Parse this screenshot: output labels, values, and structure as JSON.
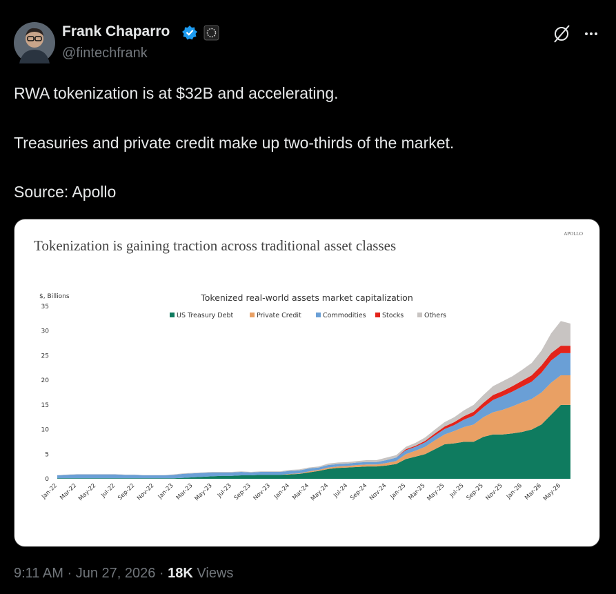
{
  "tweet": {
    "author": {
      "name": "Frank Chaparro",
      "handle": "@fintechfrank"
    },
    "text": [
      "RWA tokenization is at $32B and accelerating.",
      "Treasuries and private credit make up two-thirds of the market.",
      "Source: Apollo"
    ],
    "meta": {
      "time": "9:11 AM",
      "separator": "·",
      "date": "Jun 27, 2026",
      "views": "18K",
      "views_label": "Views"
    }
  },
  "card": {
    "brand": "APOLLO",
    "title": "Tokenization is gaining traction across traditional asset classes"
  },
  "chart_data": {
    "type": "stacked_area",
    "title": "Tokenized real-world assets market capitalization",
    "y_label": "$, Billions",
    "categories": [
      "Jan-22",
      null,
      "Mar-22",
      null,
      "May-22",
      null,
      "Jul-22",
      null,
      "Sep-22",
      null,
      "Nov-22",
      null,
      "Jan-23",
      null,
      "Mar-23",
      null,
      "May-23",
      null,
      "Jul-23",
      null,
      "Sep-23",
      null,
      "Nov-23",
      null,
      "Jan-24",
      null,
      "Mar-24",
      null,
      "May-24",
      null,
      "Jul-24",
      null,
      "Sep-24",
      null,
      "Nov-24",
      null,
      "Jan-25",
      null,
      "Mar-25",
      null,
      "May-25",
      null,
      "Jul-25",
      null,
      "Sep-25",
      null,
      "Nov-25",
      null,
      "Jan-26",
      null,
      "Mar-26",
      null,
      "May-26",
      null
    ],
    "ylim": [
      0,
      35
    ],
    "yticks": [
      0,
      5,
      10,
      15,
      20,
      25,
      30,
      35
    ],
    "grid": false,
    "series": [
      {
        "name": "US Treasury Debt",
        "color": "#0f7b5f",
        "values": [
          0.1,
          0.1,
          0.1,
          0.1,
          0.1,
          0.1,
          0.1,
          0.1,
          0.1,
          0.1,
          0.1,
          0.1,
          0.1,
          0.2,
          0.3,
          0.4,
          0.5,
          0.6,
          0.6,
          0.7,
          0.7,
          0.8,
          0.8,
          0.8,
          0.9,
          1.0,
          1.3,
          1.6,
          2.0,
          2.2,
          2.3,
          2.4,
          2.5,
          2.5,
          2.7,
          3.0,
          4.0,
          4.5,
          5.0,
          6.0,
          7.0,
          7.2,
          7.5,
          7.5,
          8.5,
          9.0,
          9.0,
          9.2,
          9.5,
          10.0,
          11.0,
          13.0,
          15.0,
          15.0
        ]
      },
      {
        "name": "Private Credit",
        "color": "#e9a064",
        "values": [
          0,
          0,
          0,
          0,
          0,
          0,
          0,
          0,
          0,
          0,
          0,
          0,
          0,
          0,
          0,
          0,
          0,
          0,
          0,
          0,
          0,
          0,
          0,
          0,
          0.1,
          0.1,
          0.2,
          0.2,
          0.3,
          0.3,
          0.3,
          0.4,
          0.4,
          0.4,
          0.5,
          0.6,
          1.0,
          1.2,
          1.5,
          1.8,
          2.0,
          2.5,
          3.0,
          3.5,
          4.0,
          4.5,
          5.0,
          5.5,
          6.0,
          6.2,
          6.5,
          6.5,
          6.0,
          6.0
        ]
      },
      {
        "name": "Commodities",
        "color": "#6a9fd6",
        "values": [
          0.6,
          0.7,
          0.8,
          0.8,
          0.8,
          0.8,
          0.8,
          0.7,
          0.7,
          0.6,
          0.6,
          0.6,
          0.7,
          0.8,
          0.8,
          0.8,
          0.8,
          0.7,
          0.7,
          0.7,
          0.6,
          0.6,
          0.6,
          0.6,
          0.6,
          0.6,
          0.6,
          0.5,
          0.5,
          0.5,
          0.5,
          0.5,
          0.5,
          0.5,
          0.6,
          0.7,
          0.8,
          0.8,
          0.9,
          1.0,
          1.1,
          1.2,
          1.5,
          1.8,
          2.0,
          2.5,
          2.8,
          3.0,
          3.2,
          3.5,
          4.0,
          4.5,
          4.5,
          4.5
        ]
      },
      {
        "name": "Stocks",
        "color": "#e3241b",
        "values": [
          0,
          0,
          0,
          0,
          0,
          0,
          0,
          0,
          0,
          0,
          0,
          0,
          0,
          0,
          0,
          0,
          0,
          0,
          0,
          0,
          0,
          0,
          0,
          0,
          0,
          0,
          0,
          0,
          0,
          0,
          0,
          0,
          0,
          0,
          0,
          0,
          0.2,
          0.2,
          0.3,
          0.4,
          0.5,
          0.6,
          0.7,
          0.8,
          0.9,
          1.0,
          1.0,
          1.1,
          1.2,
          1.3,
          1.5,
          1.5,
          1.5,
          1.5
        ]
      },
      {
        "name": "Others",
        "color": "#c8c4c2",
        "values": [
          0.05,
          0.05,
          0.05,
          0.05,
          0.05,
          0.05,
          0.05,
          0.05,
          0.05,
          0.05,
          0.05,
          0.05,
          0.1,
          0.1,
          0.1,
          0.1,
          0.1,
          0.1,
          0.1,
          0.1,
          0.1,
          0.1,
          0.1,
          0.1,
          0.2,
          0.2,
          0.2,
          0.2,
          0.3,
          0.3,
          0.3,
          0.3,
          0.4,
          0.4,
          0.5,
          0.5,
          0.5,
          0.6,
          0.7,
          0.8,
          0.9,
          1.0,
          1.2,
          1.4,
          1.6,
          1.8,
          2.0,
          2.0,
          2.2,
          2.5,
          3.0,
          4.0,
          5.0,
          4.5
        ]
      }
    ]
  }
}
